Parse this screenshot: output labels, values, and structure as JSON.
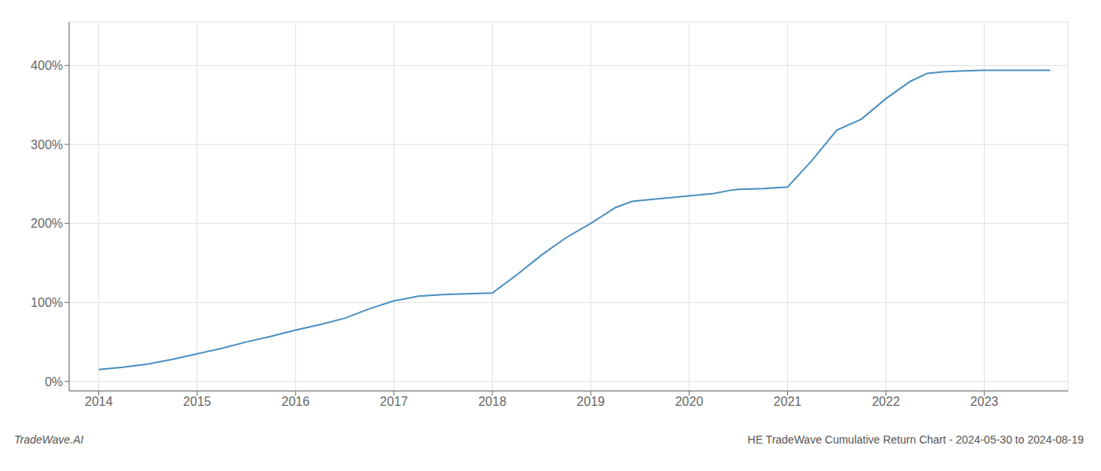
{
  "chart_data": {
    "type": "line",
    "title": "HE TradeWave Cumulative Return Chart - 2024-05-30 to 2024-08-19",
    "annotations": [
      "TradeWave.AI"
    ],
    "color": "#4a8fc0",
    "x": [
      2014.0,
      2014.25,
      2014.5,
      2014.75,
      2015.0,
      2015.25,
      2015.5,
      2015.75,
      2016.0,
      2016.25,
      2016.5,
      2016.75,
      2017.0,
      2017.25,
      2017.5,
      2017.75,
      2018.0,
      2018.25,
      2018.5,
      2018.75,
      2019.0,
      2019.25,
      2019.42,
      2019.58,
      2019.75,
      2020.0,
      2020.25,
      2020.42,
      2020.5,
      2020.75,
      2021.0,
      2021.25,
      2021.5,
      2021.75,
      2022.0,
      2022.25,
      2022.42,
      2022.58,
      2022.75,
      2023.0,
      2023.25,
      2023.5,
      2023.67
    ],
    "values": [
      0.15,
      0.18,
      0.22,
      0.28,
      0.35,
      0.42,
      0.5,
      0.57,
      0.65,
      0.72,
      0.8,
      0.92,
      1.02,
      1.08,
      1.1,
      1.11,
      1.12,
      1.35,
      1.6,
      1.82,
      2.0,
      2.2,
      2.28,
      2.3,
      2.32,
      2.35,
      2.38,
      2.42,
      2.43,
      2.44,
      2.46,
      2.8,
      3.18,
      3.32,
      3.58,
      3.8,
      3.9,
      3.92,
      3.93,
      3.94,
      3.94,
      3.94,
      3.94
    ],
    "xlim": [
      2013.7,
      2023.85
    ],
    "ylim": [
      -0.12,
      4.55
    ],
    "xticks": [
      2014,
      2015,
      2016,
      2017,
      2018,
      2019,
      2020,
      2021,
      2022,
      2023
    ],
    "yticks": [
      {
        "value": 0.0,
        "label": "0%"
      },
      {
        "value": 1.0,
        "label": "100%"
      },
      {
        "value": 2.0,
        "label": "200%"
      },
      {
        "value": 3.0,
        "label": "300%"
      },
      {
        "value": 4.0,
        "label": "400%"
      }
    ],
    "grid": true
  }
}
